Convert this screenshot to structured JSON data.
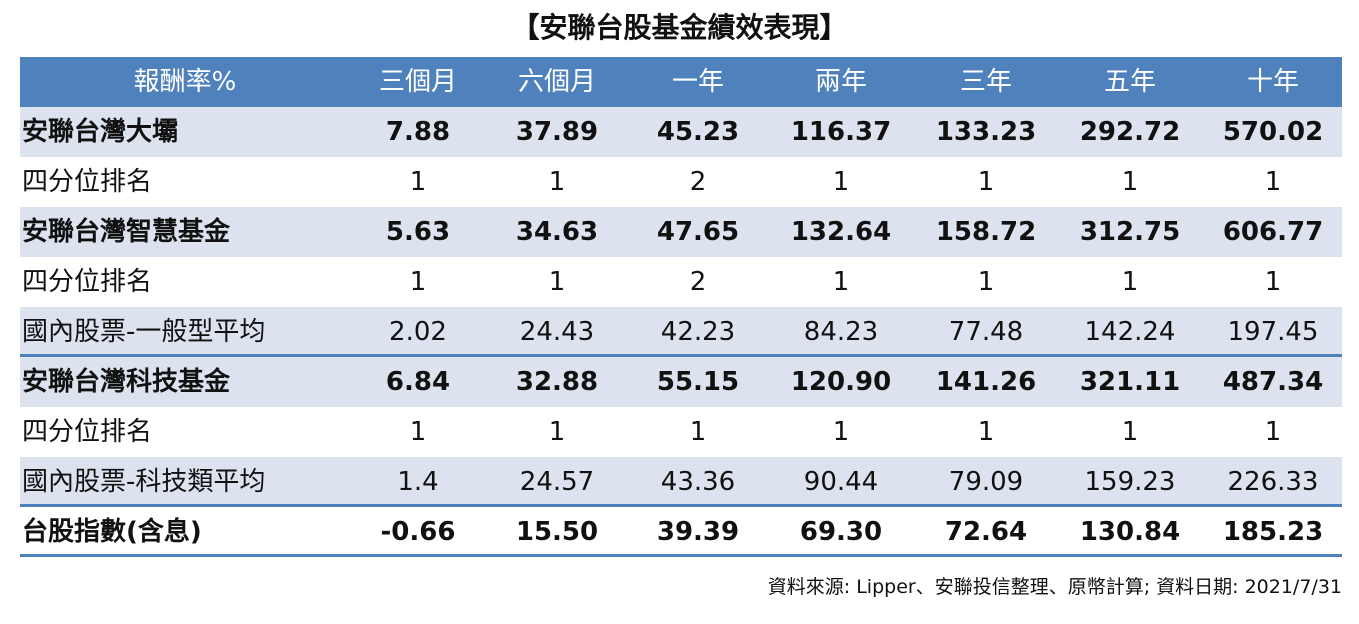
{
  "title": "【安聯台股基金績效表現】",
  "table": {
    "header": [
      "報酬率%",
      "三個月",
      "六個月",
      "一年",
      "兩年",
      "三年",
      "五年",
      "十年"
    ],
    "rows": [
      [
        "安聯台灣大壩",
        "7.88",
        "37.89",
        "45.23",
        "116.37",
        "133.23",
        "292.72",
        "570.02"
      ],
      [
        "四分位排名",
        "1",
        "1",
        "2",
        "1",
        "1",
        "1",
        "1"
      ],
      [
        "安聯台灣智慧基金",
        "5.63",
        "34.63",
        "47.65",
        "132.64",
        "158.72",
        "312.75",
        "606.77"
      ],
      [
        "四分位排名",
        "1",
        "1",
        "2",
        "1",
        "1",
        "1",
        "1"
      ],
      [
        "國內股票-一般型平均",
        "2.02",
        "24.43",
        "42.23",
        "84.23",
        "77.48",
        "142.24",
        "197.45"
      ],
      [
        "安聯台灣科技基金",
        "6.84",
        "32.88",
        "55.15",
        "120.90",
        "141.26",
        "321.11",
        "487.34"
      ],
      [
        "四分位排名",
        "1",
        "1",
        "1",
        "1",
        "1",
        "1",
        "1"
      ],
      [
        "國內股票-科技類平均",
        "1.4",
        "24.57",
        "43.36",
        "90.44",
        "79.09",
        "159.23",
        "226.33"
      ],
      [
        "台股指數(含息)",
        "-0.66",
        "15.50",
        "39.39",
        "69.30",
        "72.64",
        "130.84",
        "185.23"
      ]
    ]
  },
  "source": "資料來源: Lipper、安聯投信整理、原幣計算; 資料日期:  2021/7/31"
}
